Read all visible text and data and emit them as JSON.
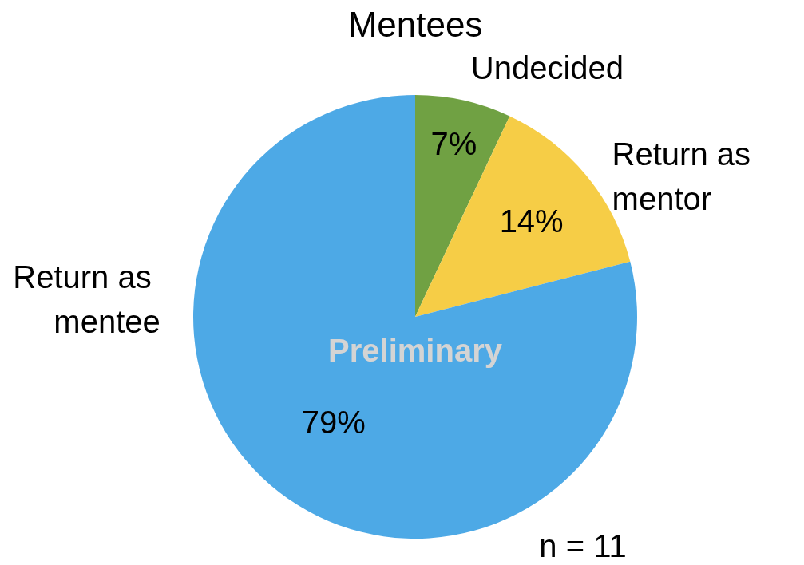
{
  "chart_data": {
    "type": "pie",
    "title": "Mentees",
    "categories": [
      "Undecided",
      "Return as mentor",
      "Return as mentee"
    ],
    "values": [
      7,
      14,
      79
    ],
    "colors": [
      "#70a143",
      "#f6cd46",
      "#4da9e6"
    ],
    "value_labels": [
      "7%",
      "14%",
      "79%"
    ],
    "annotations": [
      "Preliminary",
      "n = 11"
    ]
  }
}
